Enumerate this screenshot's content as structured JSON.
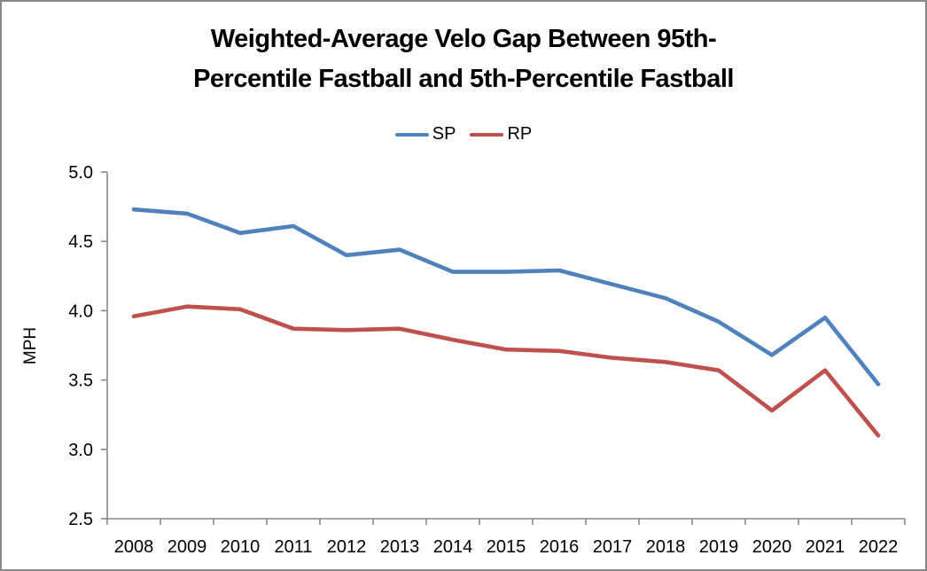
{
  "chart_data": {
    "type": "line",
    "title": "Weighted-Average Velo Gap Between 95th-Percentile Fastball and 5th-Percentile Fastball",
    "title_lines": [
      "Weighted-Average Velo Gap Between 95th-",
      "Percentile Fastball and 5th-Percentile Fastball"
    ],
    "xlabel": "",
    "ylabel": "MPH",
    "categories": [
      "2008",
      "2009",
      "2010",
      "2011",
      "2012",
      "2013",
      "2014",
      "2015",
      "2016",
      "2017",
      "2018",
      "2019",
      "2020",
      "2021",
      "2022"
    ],
    "series": [
      {
        "name": "SP",
        "color": "#4F81BD",
        "values": [
          4.73,
          4.7,
          4.56,
          4.61,
          4.4,
          4.44,
          4.28,
          4.28,
          4.29,
          4.19,
          4.09,
          3.92,
          3.68,
          3.95,
          3.47
        ]
      },
      {
        "name": "RP",
        "color": "#C0504D",
        "values": [
          3.96,
          4.03,
          4.01,
          3.87,
          3.86,
          3.87,
          3.79,
          3.72,
          3.71,
          3.66,
          3.63,
          3.57,
          3.28,
          3.57,
          3.1
        ]
      }
    ],
    "ylim": [
      2.5,
      5.0
    ],
    "ytick_labels": [
      "2.5",
      "3.0",
      "3.5",
      "4.0",
      "4.5",
      "5.0"
    ],
    "grid": false,
    "legend_position": "top"
  },
  "frame": {
    "border_color": "#898989",
    "axis_color": "#898989",
    "background": "#FFFFFF"
  }
}
